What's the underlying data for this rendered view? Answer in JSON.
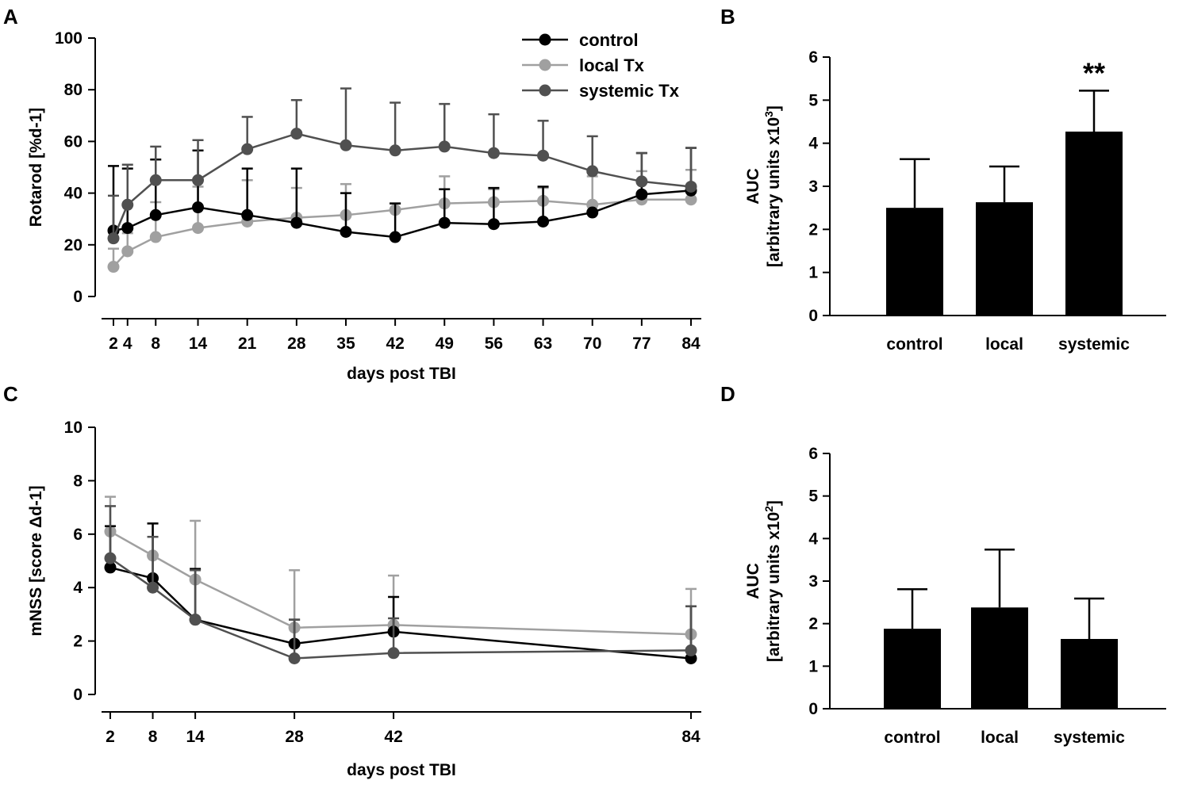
{
  "colors": {
    "control": "#000000",
    "local": "#a0a0a0",
    "systemic": "#505050",
    "bar": "#000000",
    "axis": "#000000"
  },
  "chart_data": [
    {
      "panel": "A",
      "type": "line",
      "xlabel": "days post TBI",
      "ylabel": "Rotarod [%d-1]",
      "ylim": [
        0,
        100
      ],
      "yticks": [
        0,
        20,
        40,
        60,
        80,
        100
      ],
      "x": [
        2,
        4,
        8,
        14,
        21,
        28,
        35,
        42,
        49,
        56,
        63,
        70,
        77,
        84
      ],
      "xtick_labels": [
        "2",
        "4",
        "8",
        "14",
        "21",
        "28",
        "35",
        "42",
        "49",
        "56",
        "63",
        "70",
        "77",
        "84"
      ],
      "legend": {
        "position": "top-right",
        "entries": [
          "control",
          "local Tx",
          "systemic Tx"
        ]
      },
      "series": [
        {
          "key": "control",
          "name": "control",
          "values": [
            25.5,
            26.5,
            31.5,
            34.5,
            31.5,
            28.5,
            25,
            23,
            28.5,
            28,
            29,
            32.5,
            39.5,
            41
          ],
          "errors": [
            25,
            23,
            21.5,
            22,
            18,
            21,
            15,
            13,
            13,
            14,
            13.5,
            0,
            16,
            16.5
          ]
        },
        {
          "key": "local",
          "name": "local Tx",
          "values": [
            11.5,
            17.5,
            23,
            26.5,
            29,
            30.5,
            31.5,
            33.5,
            36,
            36.5,
            37,
            35.5,
            37.5,
            37.5
          ],
          "errors": [
            7,
            7,
            13.5,
            16,
            16,
            11.5,
            12,
            2.5,
            10.5,
            5,
            5,
            11,
            11,
            11.5
          ]
        },
        {
          "key": "systemic",
          "name": "systemic Tx",
          "values": [
            22.5,
            35.5,
            45,
            45,
            57,
            63,
            58.5,
            56.5,
            58,
            55.5,
            54.5,
            48.5,
            44.5,
            42.5
          ],
          "errors": [
            16.5,
            15.5,
            13,
            15.5,
            12.5,
            13,
            22,
            18.5,
            16.5,
            15,
            13.5,
            13.5,
            11,
            15
          ]
        }
      ]
    },
    {
      "panel": "B",
      "type": "bar",
      "categories": [
        "control",
        "local",
        "systemic"
      ],
      "values": [
        2.5,
        2.63,
        4.27
      ],
      "errors": [
        1.13,
        0.83,
        0.95
      ],
      "ylim": [
        0,
        6
      ],
      "yticks": [
        0,
        1,
        2,
        3,
        4,
        5,
        6
      ],
      "ylabel_line1": "AUC",
      "ylabel_line2_prefix": "[arbitrary units x10",
      "ylabel_line2_sup": "3",
      "ylabel_line2_suffix": "]",
      "annotations": [
        {
          "category": "systemic",
          "text": "**"
        }
      ]
    },
    {
      "panel": "C",
      "type": "line",
      "xlabel": "days post TBI",
      "ylabel": "mNSS [score Δd-1]",
      "ylim": [
        0,
        10
      ],
      "yticks": [
        0,
        2,
        4,
        6,
        8,
        10
      ],
      "x": [
        2,
        8,
        14,
        28,
        42,
        84
      ],
      "xtick_labels": [
        "2",
        "8",
        "14",
        "28",
        "42",
        "84"
      ],
      "series": [
        {
          "key": "control",
          "name": "control",
          "values": [
            4.75,
            4.35,
            2.8,
            1.9,
            2.35,
            1.35
          ],
          "errors": [
            1.55,
            2.05,
            1.9,
            0.9,
            1.3,
            1.95
          ]
        },
        {
          "key": "local",
          "name": "local Tx",
          "values": [
            6.1,
            5.2,
            4.3,
            2.5,
            2.6,
            2.25
          ],
          "errors": [
            1.3,
            1.2,
            2.2,
            2.15,
            1.85,
            1.7
          ]
        },
        {
          "key": "systemic",
          "name": "systemic Tx",
          "values": [
            5.1,
            4.0,
            2.8,
            1.35,
            1.55,
            1.65
          ],
          "errors": [
            1.95,
            1.9,
            1.85,
            1.45,
            1.3,
            1.65
          ]
        }
      ]
    },
    {
      "panel": "D",
      "type": "bar",
      "categories": [
        "control",
        "local",
        "systemic"
      ],
      "values": [
        1.88,
        2.38,
        1.64
      ],
      "errors": [
        0.93,
        1.36,
        0.95
      ],
      "ylim": [
        0,
        6
      ],
      "yticks": [
        0,
        1,
        2,
        3,
        4,
        5,
        6
      ],
      "ylabel_line1": "AUC",
      "ylabel_line2_prefix": "[arbitrary units x10",
      "ylabel_line2_sup": "2",
      "ylabel_line2_suffix": "]",
      "annotations": []
    }
  ]
}
